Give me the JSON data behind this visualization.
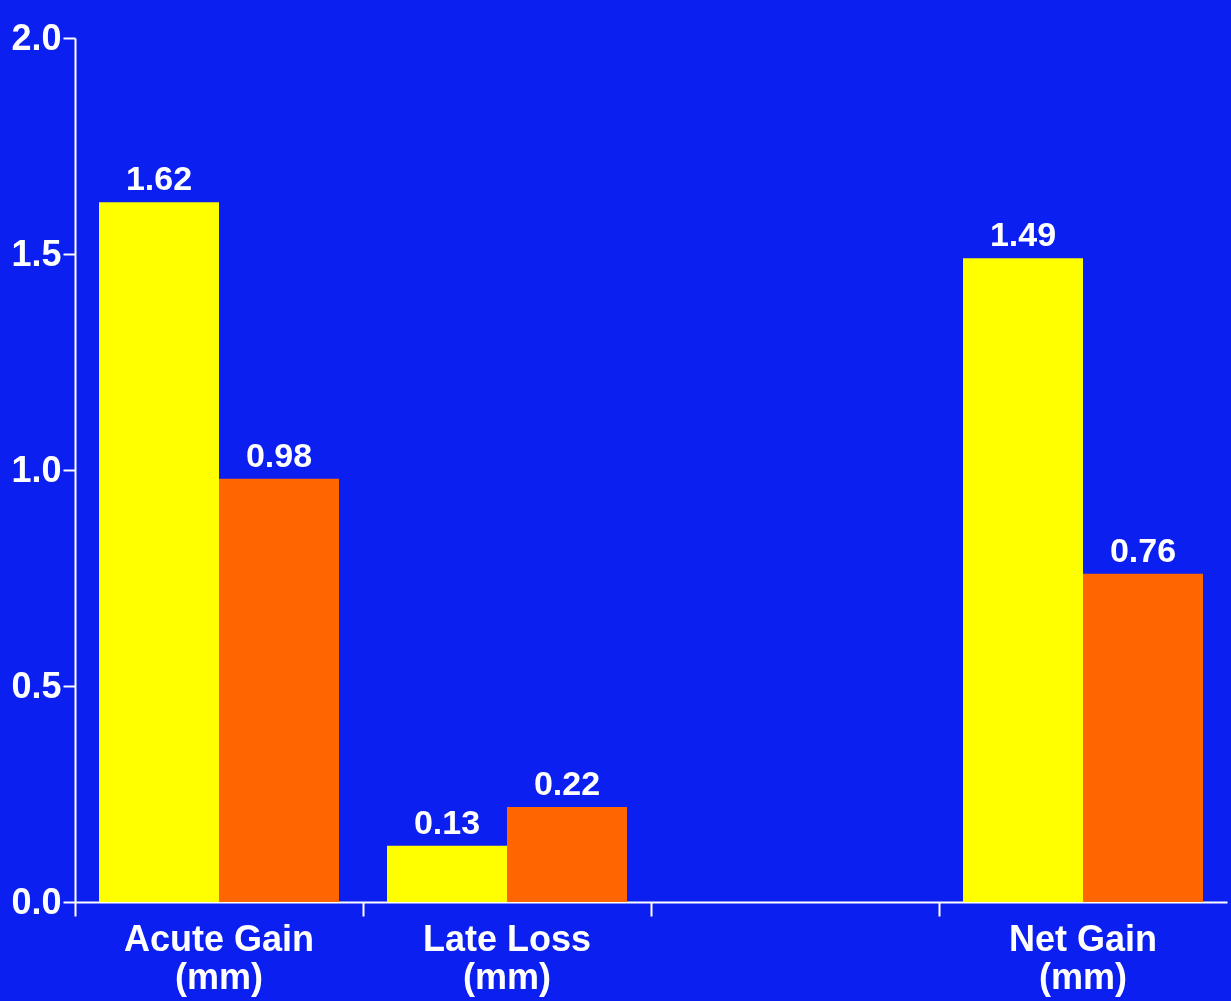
{
  "chart_data": {
    "type": "bar",
    "categories": [
      "Acute Gain (mm)",
      "Late Loss (mm)",
      null,
      "Net Gain (mm)"
    ],
    "series": [
      {
        "color": "#ffff00",
        "values": [
          1.62,
          0.13,
          null,
          1.49
        ]
      },
      {
        "color": "#ff6600",
        "values": [
          0.98,
          0.22,
          null,
          0.76
        ]
      }
    ],
    "ylim": [
      0,
      2.0
    ],
    "yticks": [
      {
        "value": 0,
        "label": "0.0"
      },
      {
        "value": 0.5,
        "label": "0.5"
      },
      {
        "value": 1,
        "label": "1.0"
      },
      {
        "value": 1.5,
        "label": "1.5"
      },
      {
        "value": 2,
        "label": "2.0"
      }
    ],
    "data_labels": true,
    "grid": false,
    "legend": false
  }
}
